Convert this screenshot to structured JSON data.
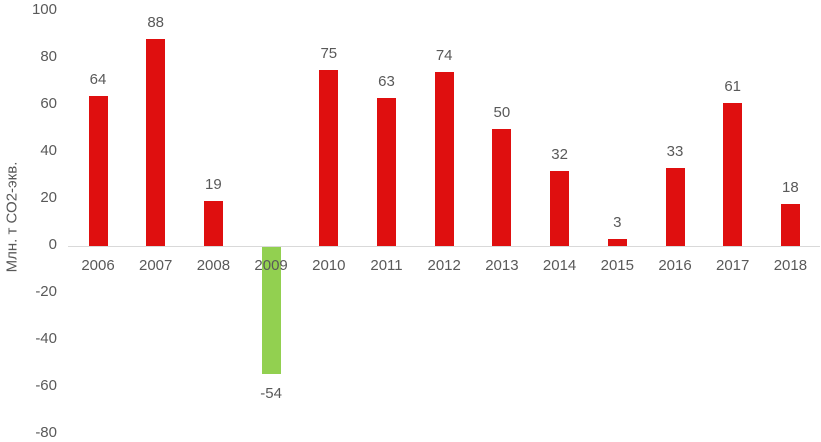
{
  "chart_data": {
    "type": "bar",
    "title": "",
    "xlabel": "",
    "ylabel": "Млн. т СО2-экв.",
    "categories": [
      "2006",
      "2007",
      "2008",
      "2009",
      "2010",
      "2011",
      "2012",
      "2013",
      "2014",
      "2015",
      "2016",
      "2017",
      "2018"
    ],
    "values": [
      64,
      88,
      19,
      -54,
      75,
      63,
      74,
      50,
      32,
      3,
      33,
      61,
      18
    ],
    "data_labels": [
      "64",
      "88",
      "19",
      "-54",
      "75",
      "63",
      "74",
      "50",
      "32",
      "3",
      "33",
      "61",
      "18"
    ],
    "y_ticks": [
      100,
      80,
      60,
      40,
      20,
      0,
      -20,
      -40,
      -60,
      -80
    ],
    "ylim": [
      -80,
      100
    ],
    "grid": false,
    "legend": "none",
    "colors": {
      "positive_bar": "#df0f0f",
      "negative_bar": "#92d050",
      "text": "#595959",
      "axis_line": "#d9d9d9",
      "background": "#ffffff"
    }
  }
}
